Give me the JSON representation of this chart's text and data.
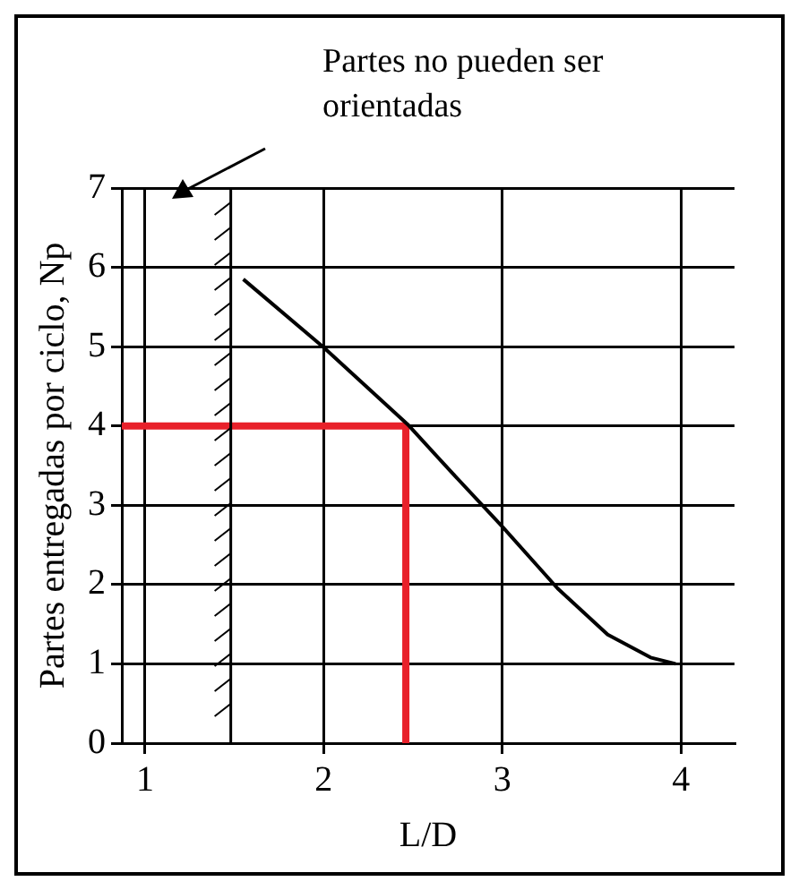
{
  "chart_data": {
    "type": "line",
    "xlabel": "L/D",
    "ylabel": "Partes entregadas por ciclo, Np",
    "xlim": [
      0.87,
      4.3
    ],
    "xticks": [
      1,
      2,
      3,
      4
    ],
    "ylim": [
      0,
      7
    ],
    "yticks": [
      0,
      1,
      2,
      3,
      4,
      5,
      6,
      7
    ],
    "grid": true,
    "legend": false,
    "marker": "none",
    "series": [
      {
        "color": "#000000",
        "x": [
          1.55,
          2.0,
          2.47,
          2.71,
          3.0,
          3.31,
          3.59,
          3.83,
          3.97
        ],
        "values": [
          5.85,
          4.99,
          4.02,
          3.43,
          2.73,
          1.95,
          1.37,
          1.08,
          1.0
        ]
      },
      {
        "color": "#e8202a",
        "x": [
          0.87,
          2.46,
          2.46
        ],
        "values": [
          4,
          4,
          0
        ]
      }
    ],
    "ref_lines": [
      {
        "axis": "x",
        "value": 1.48,
        "color": "#000000"
      }
    ],
    "annotations": [
      "Partes no pueden ser orientadas"
    ]
  }
}
